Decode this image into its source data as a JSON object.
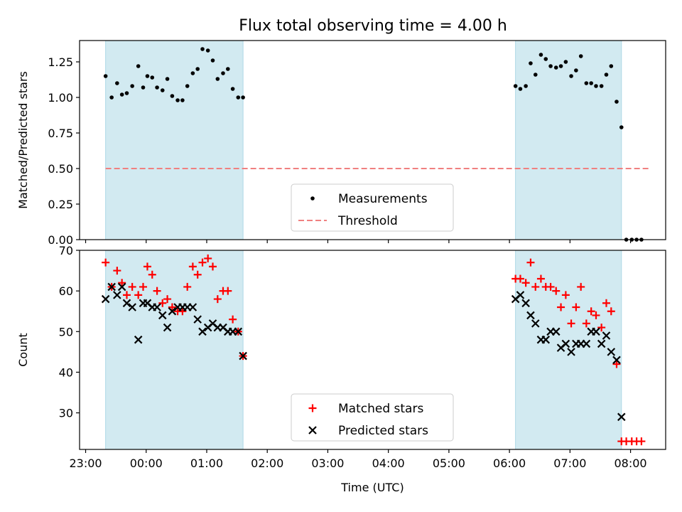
{
  "title": "Flux total observing time = 4.00 h",
  "colors": {
    "span": "#add8e6",
    "matched": "#ff0000",
    "predicted": "#000000",
    "threshold": "#f08080",
    "measure": "#000000"
  },
  "chart_data": [
    {
      "type": "scatter",
      "panel": "top",
      "ylabel": "Matched/Predicted stars",
      "ylim": [
        0,
        1.4
      ],
      "yticks": [
        0.0,
        0.25,
        0.5,
        0.75,
        1.0,
        1.25
      ],
      "ytick_labels": [
        "0.00",
        "0.25",
        "0.50",
        "0.75",
        "1.00",
        "1.25"
      ],
      "xlim": [
        -0.1,
        9.58
      ],
      "threshold": {
        "value": 0.5,
        "x_range": [
          0.33,
          9.33
        ]
      },
      "spans": [
        [
          0.33,
          2.6
        ],
        [
          7.1,
          8.85
        ]
      ],
      "legend": {
        "placement": "lower-center",
        "entries": [
          "Measurements",
          "Threshold"
        ]
      },
      "series": [
        {
          "name": "Measurements",
          "marker": "dot",
          "points": [
            [
              0.33,
              1.15
            ],
            [
              0.43,
              1.0
            ],
            [
              0.52,
              1.1
            ],
            [
              0.6,
              1.02
            ],
            [
              0.68,
              1.03
            ],
            [
              0.77,
              1.08
            ],
            [
              0.87,
              1.22
            ],
            [
              0.95,
              1.07
            ],
            [
              1.02,
              1.15
            ],
            [
              1.1,
              1.14
            ],
            [
              1.18,
              1.07
            ],
            [
              1.27,
              1.05
            ],
            [
              1.35,
              1.13
            ],
            [
              1.43,
              1.01
            ],
            [
              1.52,
              0.98
            ],
            [
              1.6,
              0.98
            ],
            [
              1.68,
              1.08
            ],
            [
              1.77,
              1.17
            ],
            [
              1.85,
              1.2
            ],
            [
              1.93,
              1.34
            ],
            [
              2.02,
              1.33
            ],
            [
              2.1,
              1.26
            ],
            [
              2.18,
              1.13
            ],
            [
              2.27,
              1.17
            ],
            [
              2.35,
              1.2
            ],
            [
              2.43,
              1.06
            ],
            [
              2.52,
              1.0
            ],
            [
              2.6,
              1.0
            ],
            [
              7.1,
              1.08
            ],
            [
              7.18,
              1.06
            ],
            [
              7.27,
              1.08
            ],
            [
              7.35,
              1.24
            ],
            [
              7.43,
              1.16
            ],
            [
              7.52,
              1.3
            ],
            [
              7.6,
              1.27
            ],
            [
              7.68,
              1.22
            ],
            [
              7.77,
              1.21
            ],
            [
              7.85,
              1.22
            ],
            [
              7.93,
              1.25
            ],
            [
              8.02,
              1.15
            ],
            [
              8.1,
              1.19
            ],
            [
              8.18,
              1.29
            ],
            [
              8.27,
              1.1
            ],
            [
              8.35,
              1.1
            ],
            [
              8.43,
              1.08
            ],
            [
              8.52,
              1.08
            ],
            [
              8.6,
              1.16
            ],
            [
              8.68,
              1.22
            ],
            [
              8.77,
              0.97
            ],
            [
              8.85,
              0.79
            ],
            [
              8.93,
              0.0
            ],
            [
              9.02,
              0.0
            ],
            [
              9.1,
              0.0
            ],
            [
              9.18,
              0.0
            ]
          ]
        }
      ]
    },
    {
      "type": "scatter",
      "panel": "bottom",
      "xlabel": "Time (UTC)",
      "ylabel": "Count",
      "ylim": [
        21,
        70
      ],
      "yticks": [
        30,
        40,
        50,
        60,
        70
      ],
      "ytick_labels": [
        "30",
        "40",
        "50",
        "60",
        "70"
      ],
      "xlim": [
        -0.1,
        9.58
      ],
      "xticks": [
        0,
        1,
        2,
        3,
        4,
        5,
        6,
        7,
        8,
        9
      ],
      "xtick_labels": [
        "23:00",
        "00:00",
        "01:00",
        "02:00",
        "03:00",
        "04:00",
        "05:00",
        "06:00",
        "07:00",
        "08:00"
      ],
      "spans": [
        [
          0.33,
          2.6
        ],
        [
          7.1,
          8.85
        ]
      ],
      "legend": {
        "placement": "lower-center",
        "entries": [
          "Matched stars",
          "Predicted stars"
        ]
      },
      "series": [
        {
          "name": "Matched stars",
          "marker": "plus",
          "points": [
            [
              0.33,
              67
            ],
            [
              0.43,
              61
            ],
            [
              0.52,
              65
            ],
            [
              0.6,
              62
            ],
            [
              0.68,
              59
            ],
            [
              0.77,
              61
            ],
            [
              0.87,
              59
            ],
            [
              0.95,
              61
            ],
            [
              1.02,
              66
            ],
            [
              1.1,
              64
            ],
            [
              1.18,
              60
            ],
            [
              1.27,
              57
            ],
            [
              1.35,
              58
            ],
            [
              1.43,
              56
            ],
            [
              1.52,
              55
            ],
            [
              1.6,
              55
            ],
            [
              1.68,
              61
            ],
            [
              1.77,
              66
            ],
            [
              1.85,
              64
            ],
            [
              1.93,
              67
            ],
            [
              2.02,
              68
            ],
            [
              2.1,
              66
            ],
            [
              2.18,
              58
            ],
            [
              2.27,
              60
            ],
            [
              2.35,
              60
            ],
            [
              2.43,
              53
            ],
            [
              2.52,
              50
            ],
            [
              2.6,
              44
            ],
            [
              7.1,
              63
            ],
            [
              7.18,
              63
            ],
            [
              7.27,
              62
            ],
            [
              7.35,
              67
            ],
            [
              7.43,
              61
            ],
            [
              7.52,
              63
            ],
            [
              7.6,
              61
            ],
            [
              7.68,
              61
            ],
            [
              7.77,
              60
            ],
            [
              7.85,
              56
            ],
            [
              7.93,
              59
            ],
            [
              8.02,
              52
            ],
            [
              8.1,
              56
            ],
            [
              8.18,
              61
            ],
            [
              8.27,
              52
            ],
            [
              8.35,
              55
            ],
            [
              8.43,
              54
            ],
            [
              8.52,
              51
            ],
            [
              8.6,
              57
            ],
            [
              8.68,
              55
            ],
            [
              8.77,
              42
            ],
            [
              8.85,
              23
            ],
            [
              8.93,
              23
            ],
            [
              9.02,
              23
            ],
            [
              9.1,
              23
            ],
            [
              9.18,
              23
            ]
          ]
        },
        {
          "name": "Predicted stars",
          "marker": "x",
          "points": [
            [
              0.33,
              58
            ],
            [
              0.43,
              61
            ],
            [
              0.52,
              59
            ],
            [
              0.6,
              61
            ],
            [
              0.68,
              57
            ],
            [
              0.77,
              56
            ],
            [
              0.87,
              48
            ],
            [
              0.95,
              57
            ],
            [
              1.02,
              57
            ],
            [
              1.1,
              56
            ],
            [
              1.18,
              56
            ],
            [
              1.27,
              54
            ],
            [
              1.35,
              51
            ],
            [
              1.43,
              55
            ],
            [
              1.52,
              56
            ],
            [
              1.6,
              56
            ],
            [
              1.68,
              56
            ],
            [
              1.77,
              56
            ],
            [
              1.85,
              53
            ],
            [
              1.93,
              50
            ],
            [
              2.02,
              51
            ],
            [
              2.1,
              52
            ],
            [
              2.18,
              51
            ],
            [
              2.27,
              51
            ],
            [
              2.35,
              50
            ],
            [
              2.43,
              50
            ],
            [
              2.52,
              50
            ],
            [
              2.6,
              44
            ],
            [
              7.1,
              58
            ],
            [
              7.18,
              59
            ],
            [
              7.27,
              57
            ],
            [
              7.35,
              54
            ],
            [
              7.43,
              52
            ],
            [
              7.52,
              48
            ],
            [
              7.6,
              48
            ],
            [
              7.68,
              50
            ],
            [
              7.77,
              50
            ],
            [
              7.85,
              46
            ],
            [
              7.93,
              47
            ],
            [
              8.02,
              45
            ],
            [
              8.1,
              47
            ],
            [
              8.18,
              47
            ],
            [
              8.27,
              47
            ],
            [
              8.35,
              50
            ],
            [
              8.43,
              50
            ],
            [
              8.52,
              47
            ],
            [
              8.6,
              49
            ],
            [
              8.68,
              45
            ],
            [
              8.77,
              43
            ],
            [
              8.85,
              29
            ]
          ]
        }
      ]
    }
  ]
}
